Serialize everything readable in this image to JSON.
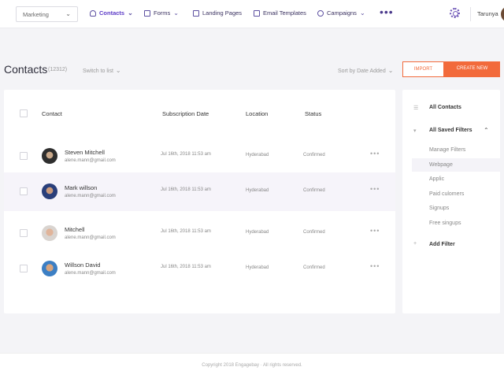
{
  "topnav": {
    "workspace": "Marketing",
    "items": [
      {
        "label": "Contacts",
        "icon": "person-icon",
        "active": true
      },
      {
        "label": "Forms",
        "icon": "form-icon"
      },
      {
        "label": "Landing Pages",
        "icon": "monitor-icon"
      },
      {
        "label": "Email Templates",
        "icon": "template-icon"
      },
      {
        "label": "Campaigns",
        "icon": "target-icon"
      }
    ],
    "more": "•••",
    "username": "Tarunya"
  },
  "toolbar": {
    "title": "Contacts",
    "count": "(12312)",
    "switch_list": "Switch to list",
    "sort": "Sort by Date Added",
    "import": "IMPORT",
    "create": "CREATE NEW"
  },
  "table": {
    "headers": [
      "Contact",
      "Subscription Date",
      "Location",
      "Status"
    ],
    "rows": [
      {
        "name": "Steven Mitchell",
        "email": "alene.mann@gmail.com",
        "date": "Jul 16th, 2018 11:53 am",
        "location": "Hyderabad",
        "status": "Confirmed"
      },
      {
        "name": "Mark willson",
        "email": "alene.mann@gmail.com",
        "date": "Jul 16th, 2018 11:53 am",
        "location": "Hyderabad",
        "status": "Confirmed"
      },
      {
        "name": "Mitchell",
        "email": "alene.mann@gmail.com",
        "date": "Jul 16th, 2018 11:53 am",
        "location": "Hyderabad",
        "status": "Confirmed"
      },
      {
        "name": "Willson David",
        "email": "alene.mann@gmail.com",
        "date": "Jul 16th, 2018 11:53 am",
        "location": "Hyderabad",
        "status": "Confirmed"
      }
    ],
    "row_menu": "•••"
  },
  "sidebar": {
    "all_contacts": "All Contacts",
    "saved_filters": "All Saved Filters",
    "filters": [
      "Manage Filters",
      "Webpage",
      "Applic",
      "Paid culomers",
      "Signups",
      "Free singups"
    ],
    "add_filter": "Add Filter"
  },
  "footer": {
    "copyright": "Copyright 2018 Engagebay · All rights reserved."
  },
  "colors": {
    "accent": "#f26a3b",
    "brand": "#5c3bc7"
  }
}
